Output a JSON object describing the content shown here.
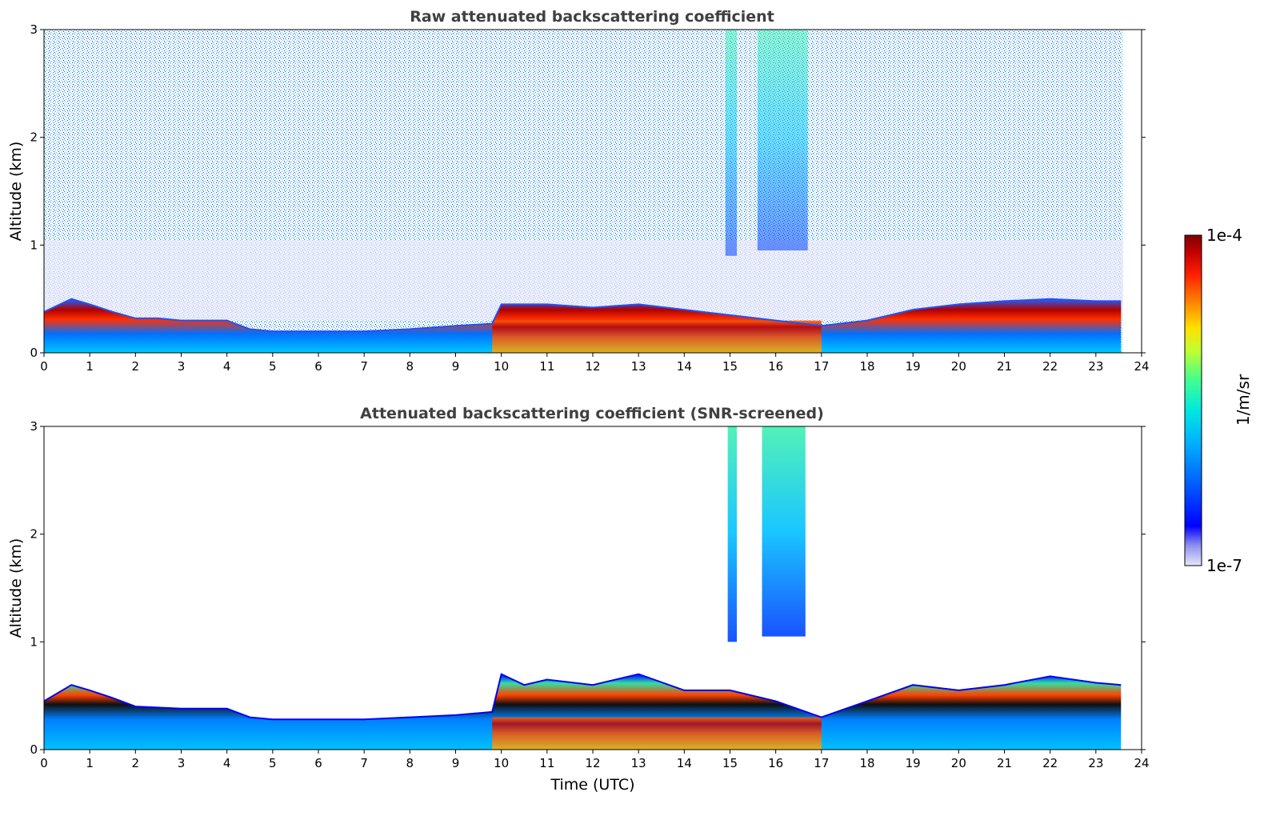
{
  "chart_data": [
    {
      "type": "heatmap",
      "title": "Raw attenuated backscattering coefficient",
      "xlabel": "",
      "ylabel": "Altitude (km)",
      "xlim": [
        0,
        24
      ],
      "ylim": [
        0,
        3
      ],
      "xticks": [
        0,
        1,
        2,
        3,
        4,
        5,
        6,
        7,
        8,
        9,
        10,
        11,
        12,
        13,
        14,
        15,
        16,
        17,
        18,
        19,
        20,
        21,
        22,
        23,
        24
      ],
      "yticks": [
        0,
        1,
        2,
        3
      ],
      "data_end_time": 23.55,
      "screened": false,
      "aerosol_layer_top_km": [
        [
          0,
          0.38
        ],
        [
          0.6,
          0.5
        ],
        [
          1,
          0.45
        ],
        [
          1.5,
          0.38
        ],
        [
          2,
          0.32
        ],
        [
          2.5,
          0.32
        ],
        [
          3,
          0.3
        ],
        [
          4,
          0.3
        ],
        [
          4.5,
          0.22
        ],
        [
          5,
          0.2
        ],
        [
          6,
          0.2
        ],
        [
          7,
          0.2
        ],
        [
          8,
          0.22
        ],
        [
          9,
          0.25
        ],
        [
          9.8,
          0.27
        ],
        [
          10,
          0.45
        ],
        [
          11,
          0.45
        ],
        [
          12,
          0.42
        ],
        [
          13,
          0.45
        ],
        [
          14,
          0.4
        ],
        [
          15,
          0.35
        ],
        [
          16,
          0.3
        ],
        [
          17,
          0.25
        ],
        [
          18,
          0.3
        ],
        [
          19,
          0.4
        ],
        [
          20,
          0.45
        ],
        [
          21,
          0.48
        ],
        [
          22,
          0.5
        ],
        [
          23,
          0.48
        ],
        [
          23.55,
          0.48
        ]
      ],
      "cloud_segments": [
        {
          "start": 14.9,
          "end": 15.15,
          "base_km": 0.9,
          "top_km": 3.0
        },
        {
          "start": 15.6,
          "end": 16.7,
          "base_km": 0.95,
          "top_km": 3.0
        }
      ]
    },
    {
      "type": "heatmap",
      "title": "Attenuated backscattering coefficient (SNR-screened)",
      "xlabel": "Time (UTC)",
      "ylabel": "Altitude (km)",
      "xlim": [
        0,
        24
      ],
      "ylim": [
        0,
        3
      ],
      "xticks": [
        0,
        1,
        2,
        3,
        4,
        5,
        6,
        7,
        8,
        9,
        10,
        11,
        12,
        13,
        14,
        15,
        16,
        17,
        18,
        19,
        20,
        21,
        22,
        23,
        24
      ],
      "yticks": [
        0,
        1,
        2,
        3
      ],
      "data_end_time": 23.55,
      "screened": true,
      "aerosol_layer_top_km": [
        [
          0,
          0.45
        ],
        [
          0.6,
          0.6
        ],
        [
          1,
          0.55
        ],
        [
          1.5,
          0.48
        ],
        [
          2,
          0.4
        ],
        [
          3,
          0.38
        ],
        [
          4,
          0.38
        ],
        [
          4.5,
          0.3
        ],
        [
          5,
          0.28
        ],
        [
          6,
          0.28
        ],
        [
          7,
          0.28
        ],
        [
          8,
          0.3
        ],
        [
          9,
          0.32
        ],
        [
          9.8,
          0.35
        ],
        [
          10,
          0.7
        ],
        [
          10.5,
          0.6
        ],
        [
          11,
          0.65
        ],
        [
          12,
          0.6
        ],
        [
          13,
          0.7
        ],
        [
          14,
          0.55
        ],
        [
          15,
          0.55
        ],
        [
          16,
          0.45
        ],
        [
          17,
          0.3
        ],
        [
          18,
          0.45
        ],
        [
          19,
          0.6
        ],
        [
          20,
          0.55
        ],
        [
          21,
          0.6
        ],
        [
          22,
          0.68
        ],
        [
          23,
          0.62
        ],
        [
          23.55,
          0.6
        ]
      ],
      "cloud_segments": [
        {
          "start": 14.95,
          "end": 15.15,
          "base_km": 1.0,
          "top_km": 3.0
        },
        {
          "start": 15.7,
          "end": 16.65,
          "base_km": 1.05,
          "top_km": 3.0
        }
      ]
    }
  ],
  "colorbar": {
    "label": "1/m/sr",
    "max_label": "1e-4",
    "min_label": "1e-7",
    "min": 1e-07,
    "max": 0.0001,
    "scale": "log",
    "colormap": [
      "#e6e6fa",
      "#9090ee",
      "#0000ff",
      "#0060ff",
      "#00b0ff",
      "#00e8e0",
      "#40ff90",
      "#c0ff30",
      "#ffe000",
      "#ff8000",
      "#ff2000",
      "#c00000",
      "#7f0000"
    ]
  }
}
